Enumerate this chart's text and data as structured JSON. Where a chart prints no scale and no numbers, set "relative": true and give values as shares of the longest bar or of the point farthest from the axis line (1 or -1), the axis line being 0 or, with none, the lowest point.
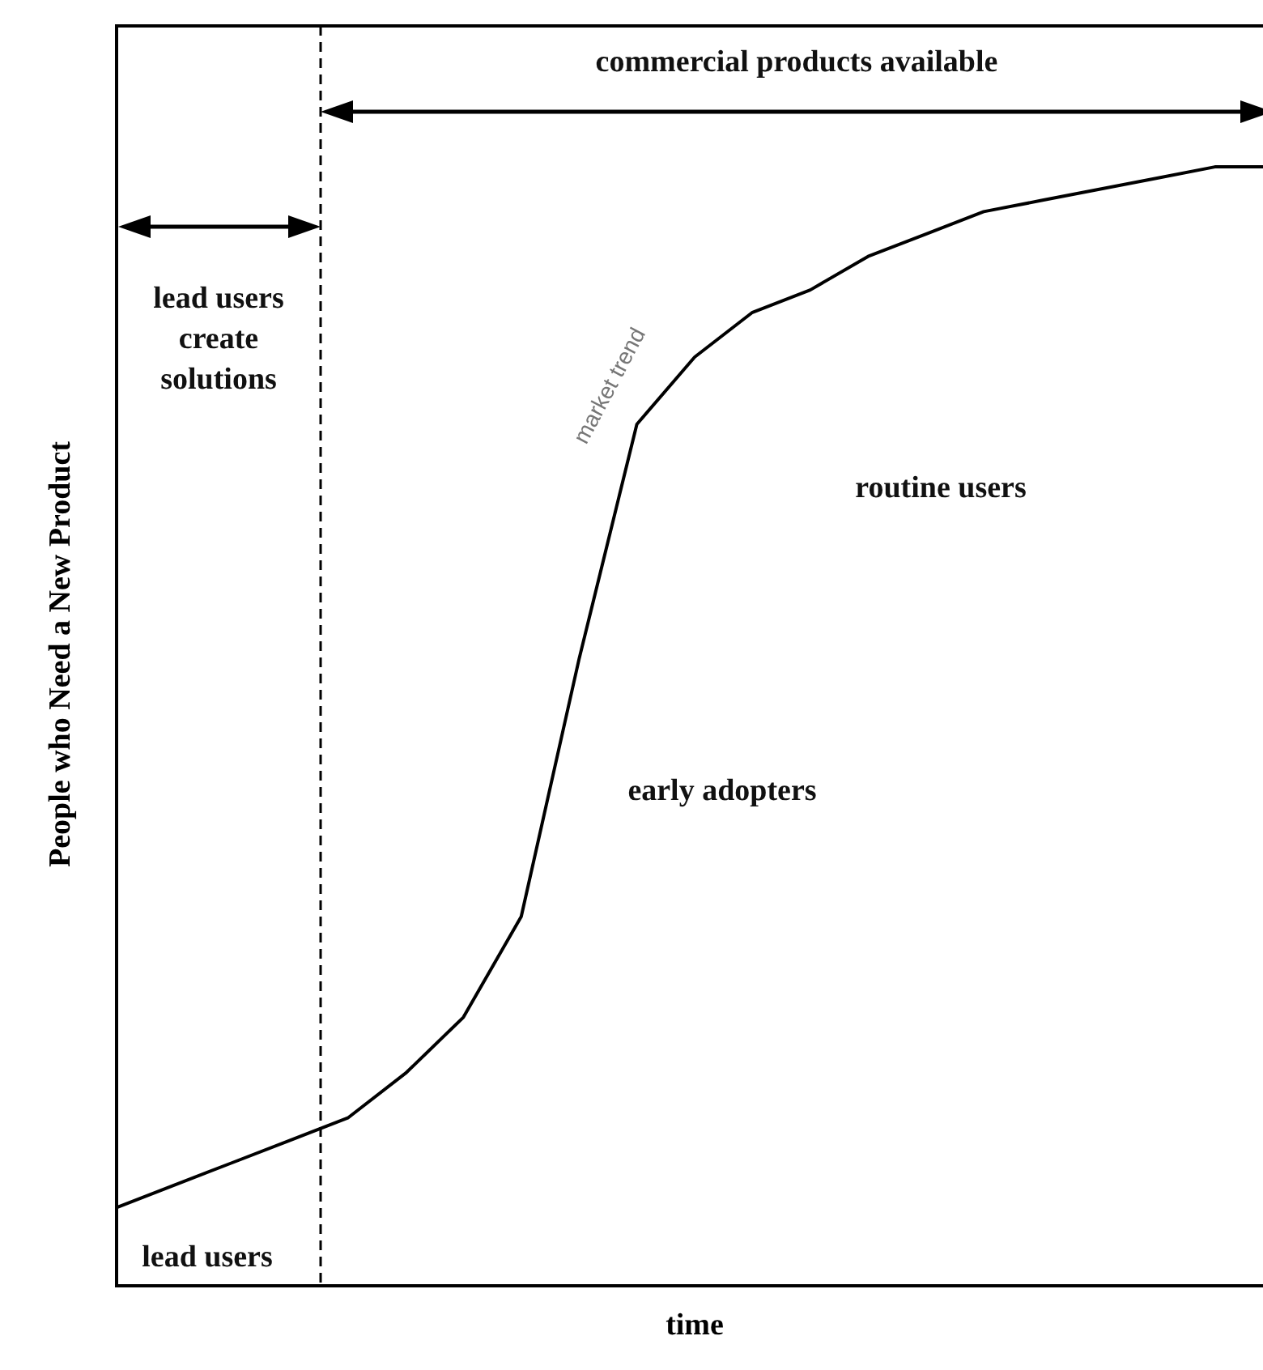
{
  "chart_data": {
    "type": "line",
    "relative": true,
    "tick_labels": false,
    "xlabel": "time",
    "ylabel": "People who Need a New Product",
    "categories": [
      null,
      null,
      null,
      null,
      null,
      null,
      null,
      null,
      null,
      null,
      null,
      null,
      null,
      null,
      null,
      null,
      null,
      null,
      null,
      null,
      null
    ],
    "series": [
      {
        "name": "market trend",
        "color": "#000000",
        "values": [
          0.07,
          0.09,
          0.11,
          0.13,
          0.15,
          0.19,
          0.24,
          0.33,
          0.56,
          0.77,
          0.83,
          0.87,
          0.89,
          0.92,
          0.94,
          0.96,
          0.97,
          0.98,
          0.99,
          1.0,
          1.0
        ]
      }
    ],
    "annotations": [
      "commercial products available",
      "lead users create solutions",
      "routine users",
      "early adopters",
      "lead users"
    ],
    "marker": "none",
    "line_style": "solid"
  }
}
